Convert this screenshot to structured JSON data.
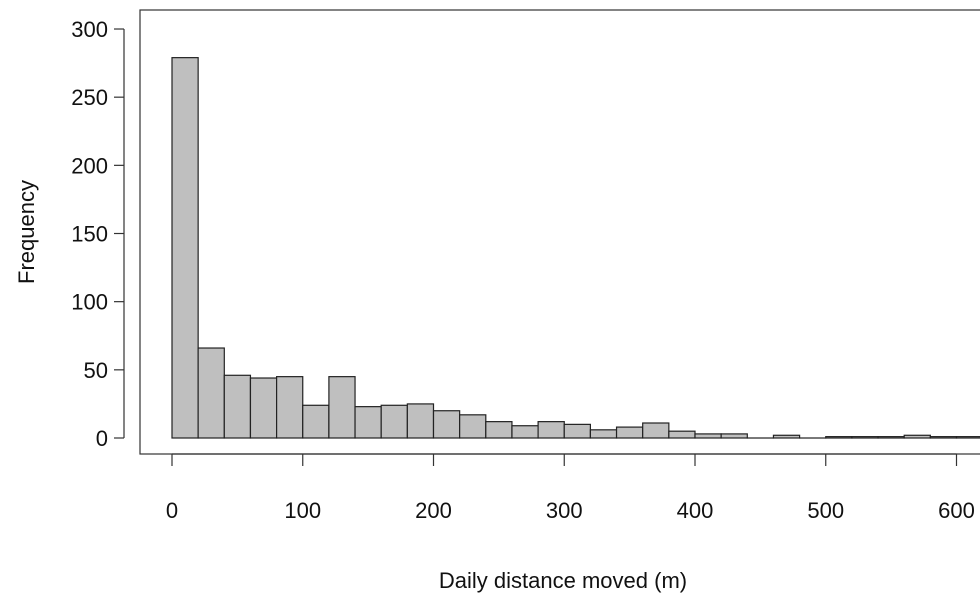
{
  "chart_data": {
    "type": "bar",
    "title": "",
    "xlabel": "Daily distance moved (m)",
    "ylabel": "Frequency",
    "bin_width": 20,
    "bin_start": 0,
    "values": [
      279,
      66,
      46,
      44,
      45,
      24,
      45,
      23,
      24,
      25,
      20,
      17,
      12,
      9,
      12,
      10,
      6,
      8,
      11,
      5,
      3,
      3,
      0,
      2,
      0,
      1,
      1,
      1,
      2,
      1,
      1
    ],
    "xlim": [
      -5,
      620
    ],
    "ylim": [
      0,
      300
    ],
    "x_ticks": [
      "0",
      "100",
      "200",
      "300",
      "400",
      "500",
      "600"
    ],
    "y_ticks": [
      "0",
      "50",
      "100",
      "150",
      "200",
      "250",
      "300"
    ],
    "grid": false,
    "legend": "none",
    "colors": {
      "bar_fill": "#bfbfbf",
      "bar_stroke": "#222222"
    }
  }
}
